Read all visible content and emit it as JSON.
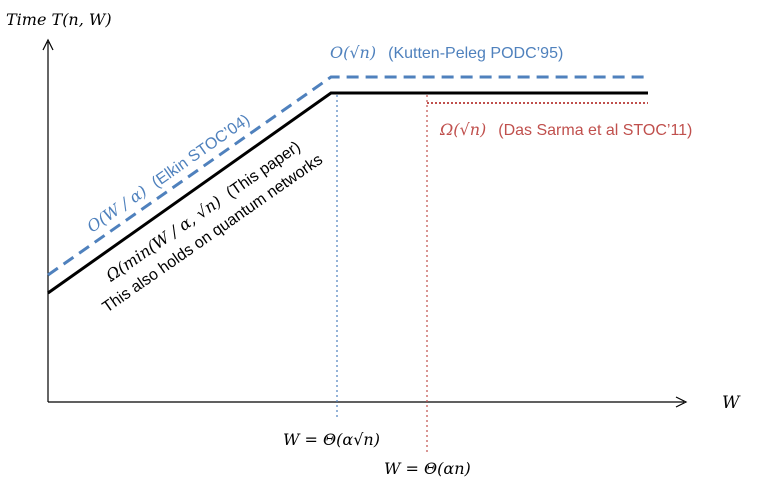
{
  "axes": {
    "y_label": "Time T(n, W)",
    "x_label": "W"
  },
  "curves": {
    "upper_elkin": {
      "formula": "O(W / α)",
      "citation": "(Elkin STOC’04)",
      "color": "#4F81BD"
    },
    "upper_kutten": {
      "formula": "O(√n)",
      "citation": "(Kutten-Peleg PODC’95)",
      "color": "#4F81BD"
    },
    "lower_das_sarma": {
      "formula": "Ω(√n)",
      "citation": "(Das Sarma et al STOC’11)",
      "color": "#C0504D"
    },
    "this_paper": {
      "formula": "Ω(min(W / α, √n)",
      "citation": "(This paper)",
      "note": "This also holds on quantum networks",
      "color": "#000000"
    }
  },
  "thresholds": {
    "blue": {
      "label": "W = Θ(α√n)",
      "color": "#4F81BD"
    },
    "red": {
      "label": "W = Θ(αn)",
      "color": "#C0504D"
    }
  }
}
